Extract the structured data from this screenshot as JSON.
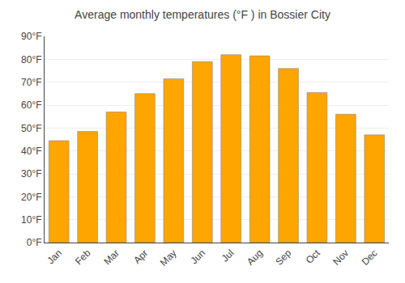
{
  "chart_data": {
    "type": "bar",
    "title": "Average monthly temperatures (°F ) in Bossier City",
    "categories": [
      "Jan",
      "Feb",
      "Mar",
      "Apr",
      "May",
      "Jun",
      "Jul",
      "Aug",
      "Sep",
      "Oct",
      "Nov",
      "Dec"
    ],
    "values": [
      44.5,
      48.5,
      57,
      65,
      71.5,
      79,
      82,
      81.5,
      76,
      65.5,
      56,
      47
    ],
    "color": "#FFA500",
    "ylim": [
      0,
      90
    ],
    "yticks": [
      {
        "value": 0,
        "label": "0°F"
      },
      {
        "value": 10,
        "label": "10°F"
      },
      {
        "value": 20,
        "label": "20°F"
      },
      {
        "value": 30,
        "label": "30°F"
      },
      {
        "value": 40,
        "label": "40°F"
      },
      {
        "value": 50,
        "label": "50°F"
      },
      {
        "value": 60,
        "label": "60°F"
      },
      {
        "value": 70,
        "label": "70°F"
      },
      {
        "value": 80,
        "label": "80°F"
      },
      {
        "value": 90,
        "label": "90°F"
      }
    ],
    "grid": true
  }
}
